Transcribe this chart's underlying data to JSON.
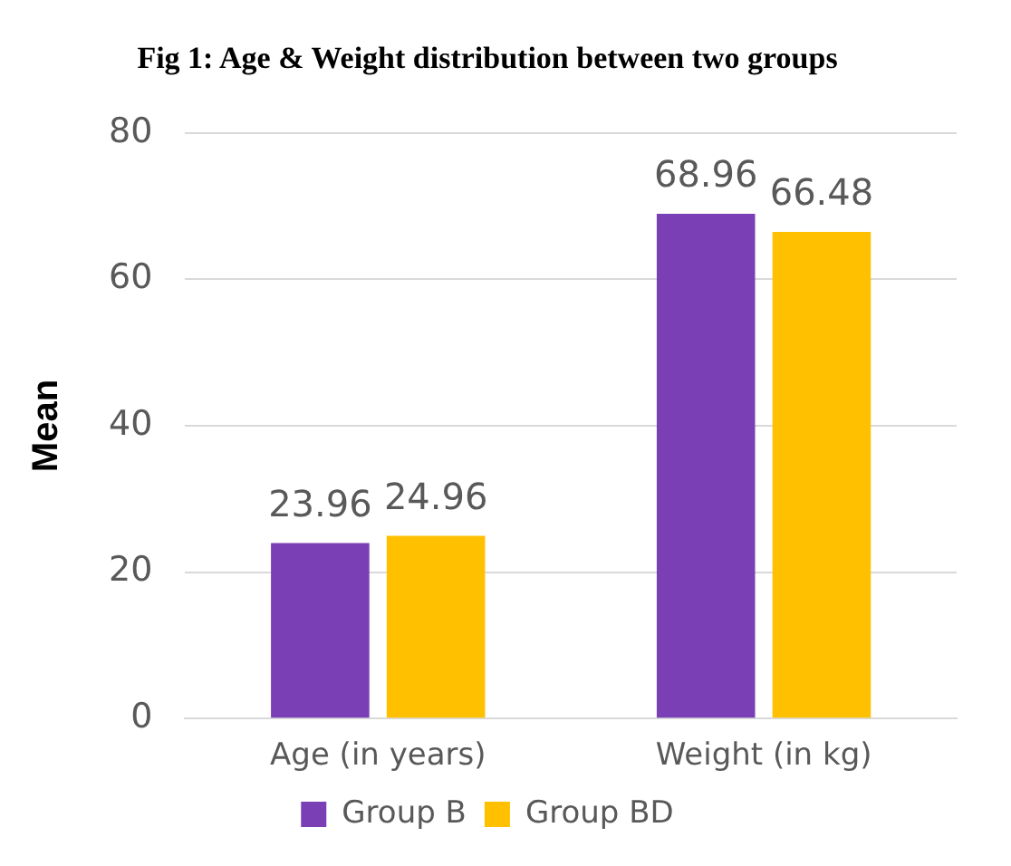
{
  "chart_data": {
    "type": "bar",
    "title": "Fig 1: Age & Weight distribution between two groups",
    "ylabel": "Mean",
    "categories": [
      "Age (in years)",
      "Weight (in kg)"
    ],
    "series": [
      {
        "name": "Group B",
        "color": "#7b3fb5",
        "values": [
          23.96,
          68.96
        ]
      },
      {
        "name": "Group BD",
        "color": "#ffc000",
        "values": [
          24.96,
          66.48
        ]
      }
    ],
    "ylim": [
      0,
      80
    ],
    "yticks": [
      0,
      20,
      40,
      60,
      80
    ],
    "grid": "y",
    "legend": "bottom",
    "data_labels": true
  }
}
